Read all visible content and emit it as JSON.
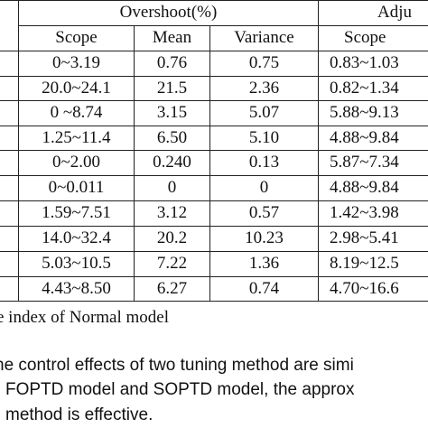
{
  "table": {
    "group_headers": [
      "Overshoot(%)",
      "Adju"
    ],
    "sub_headers": [
      "Scope",
      "Mean",
      "Variance",
      "Scope"
    ],
    "rows": [
      [
        "0~3.19",
        "0.76",
        "0.75",
        "0.83~1.03"
      ],
      [
        "20.0~24.1",
        "21.5",
        "2.36",
        "0.82~1.34"
      ],
      [
        "0 ~8.74",
        "3.15",
        "5.07",
        "5.88~9.13"
      ],
      [
        "1.25~11.4",
        "6.50",
        "5.10",
        "4.88~9.84"
      ],
      [
        "0~2.00",
        "0.240",
        "0.13",
        "5.87~7.34"
      ],
      [
        "0~0.011",
        "0",
        "0",
        "4.88~9.84"
      ],
      [
        "1.59~7.51",
        "3.12",
        "0.57",
        "1.42~3.98"
      ],
      [
        "14.0~32.4",
        "20.2",
        "10.23",
        "2.98~5.41"
      ],
      [
        "5.03~10.5",
        "7.22",
        "1.36",
        "8.19~12.5"
      ],
      [
        "4.43~8.50",
        "6.27",
        "0.74",
        "4.70~16.6"
      ]
    ]
  },
  "caption": "e index of Normal model",
  "paragraph": [
    "he control effects of two tuning method are simi",
    "FOPTD model and SOPTD model, the approx",
    "method is effective."
  ]
}
